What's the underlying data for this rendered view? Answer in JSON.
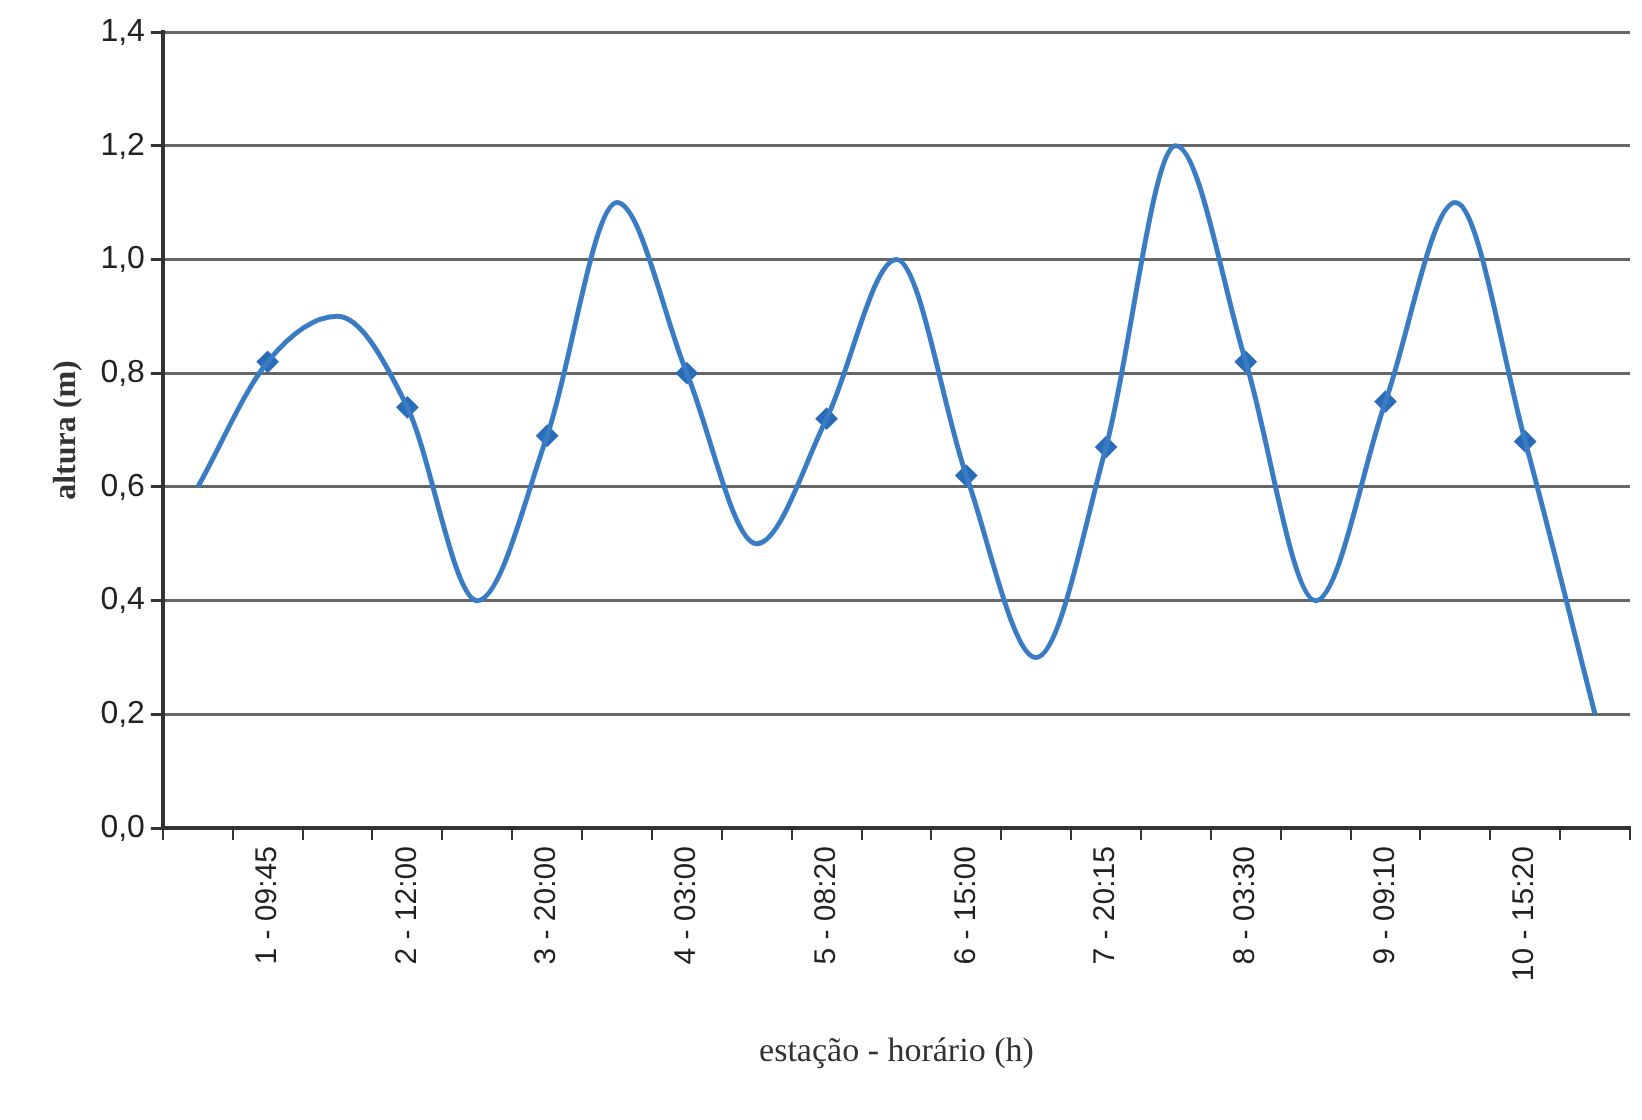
{
  "chart_data": {
    "type": "line",
    "xlabel": "estação - horário (h)",
    "ylabel": "altura (m)",
    "categories": [
      null,
      "1 - 09:45",
      null,
      "2 - 12:00",
      null,
      "3 - 20:00",
      null,
      "4 - 03:00",
      null,
      "5 - 08:20",
      null,
      "6 - 15:00",
      null,
      "7 - 20:15",
      null,
      "8 - 03:30",
      null,
      "9 - 09:10",
      null,
      "10 - 15:20",
      null
    ],
    "series": [
      {
        "type": "line",
        "color": "#3a7cc4",
        "values": [
          0.6,
          0.82,
          0.9,
          0.74,
          0.4,
          0.69,
          1.1,
          0.8,
          0.5,
          0.72,
          1.0,
          0.62,
          0.3,
          0.67,
          1.2,
          0.82,
          0.4,
          0.75,
          1.1,
          0.68,
          0.2
        ]
      },
      {
        "type": "scatter",
        "color": "#2a6cb8",
        "marker": "diamond",
        "values": [
          null,
          0.82,
          null,
          0.74,
          null,
          0.69,
          null,
          0.8,
          null,
          0.72,
          null,
          0.62,
          null,
          0.67,
          null,
          0.82,
          null,
          0.75,
          null,
          0.68,
          null
        ]
      }
    ],
    "ylim": [
      0,
      1.4
    ],
    "yticks": [
      {
        "value": 0,
        "label": "0,0"
      },
      {
        "value": 0.2,
        "label": "0,2"
      },
      {
        "value": 0.4,
        "label": "0,4"
      },
      {
        "value": 0.6,
        "label": "0,6"
      },
      {
        "value": 0.8,
        "label": "0,8"
      },
      {
        "value": 1.0,
        "label": "1,0"
      },
      {
        "value": 1.2,
        "label": "1,2"
      },
      {
        "value": 1.4,
        "label": "1,4"
      }
    ],
    "grid": "y",
    "legend": false
  }
}
